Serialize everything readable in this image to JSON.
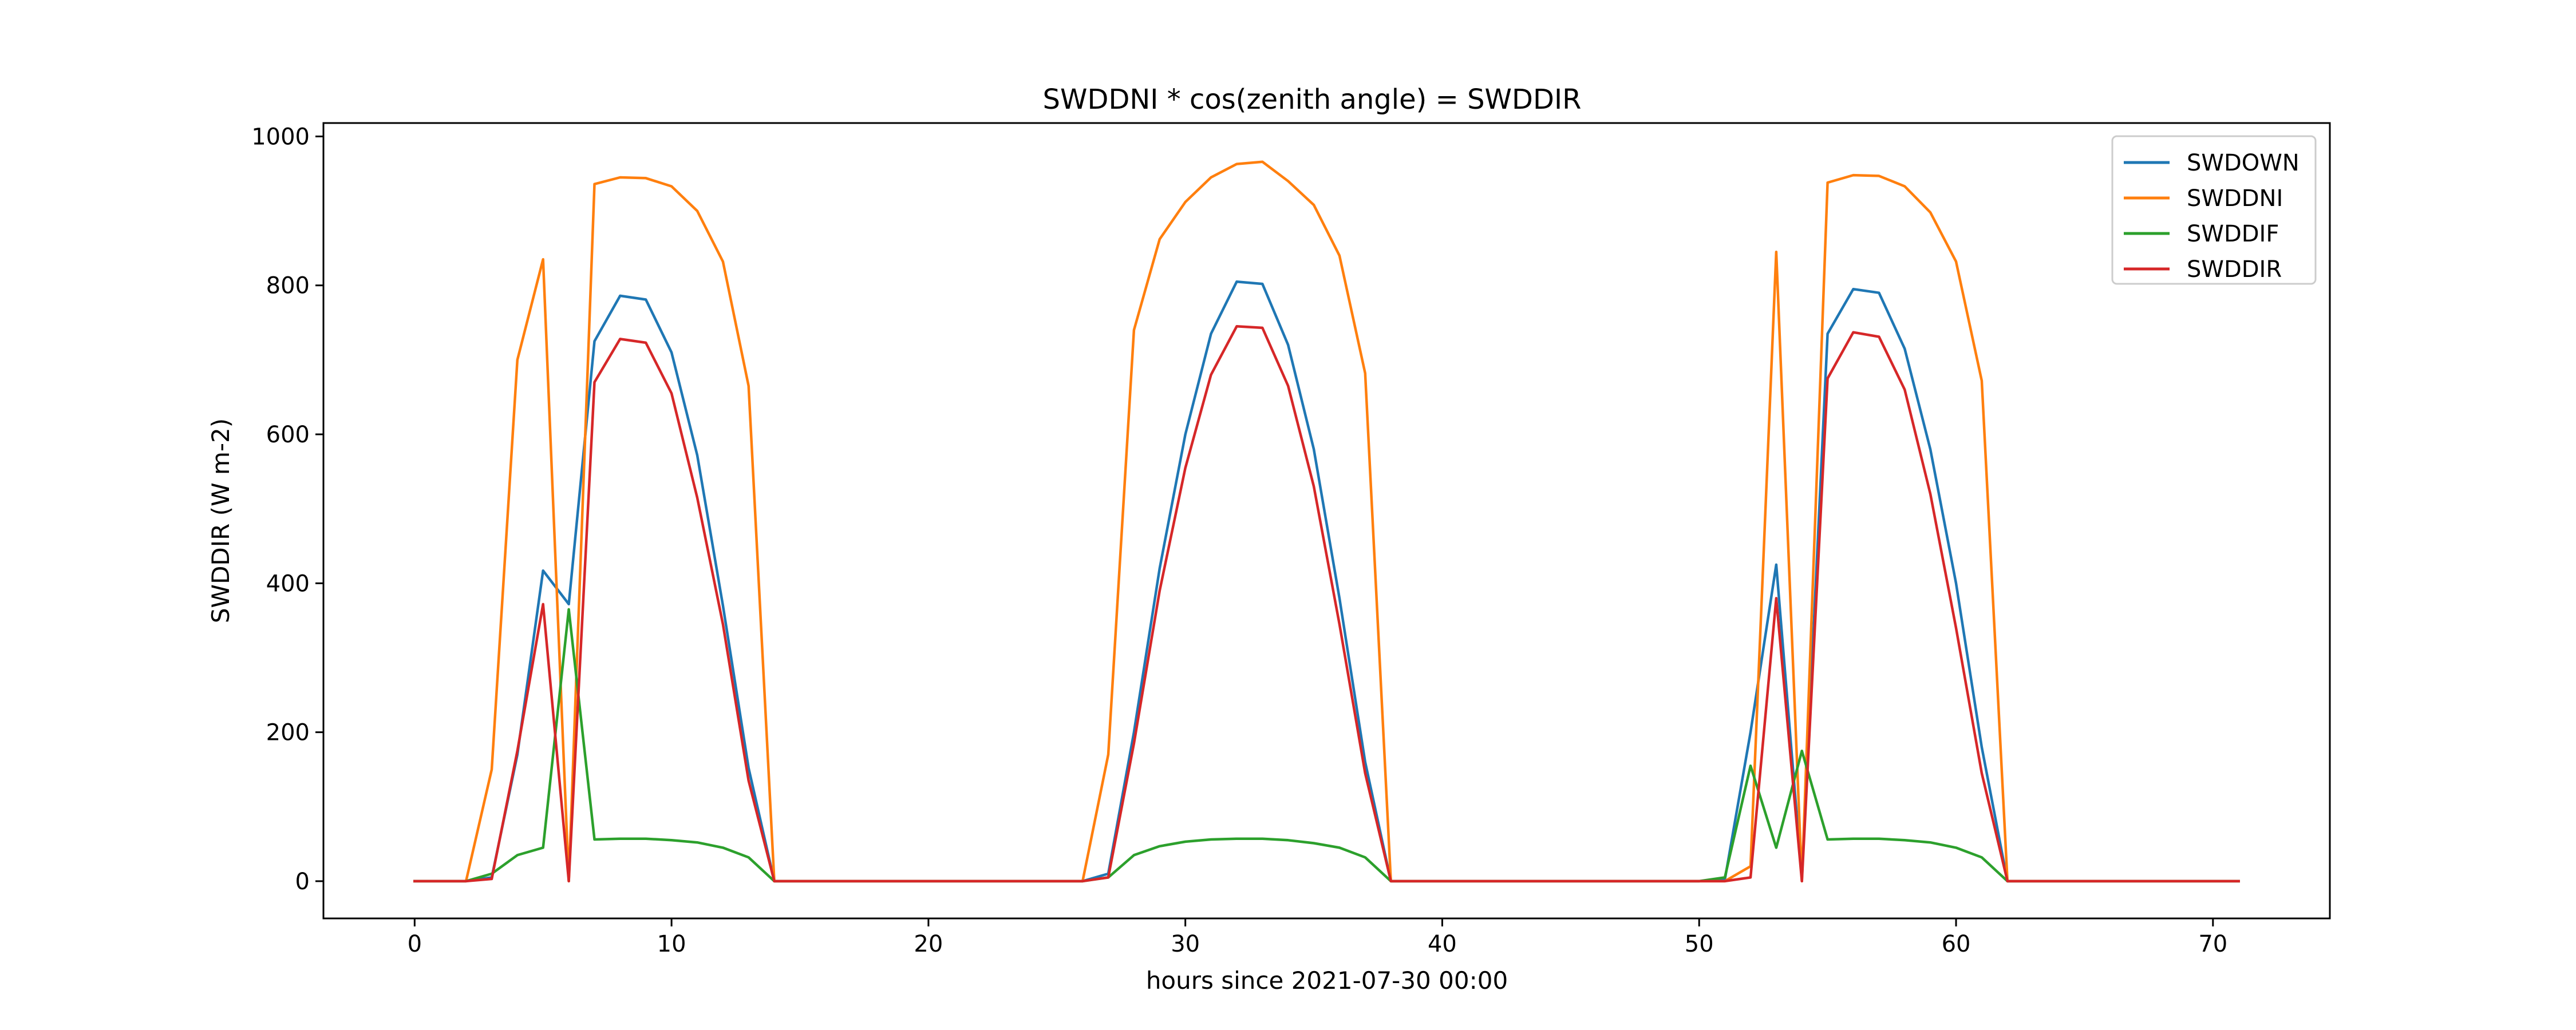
{
  "chart_data": {
    "type": "line",
    "title": "SWDDNI * cos(zenith angle) = SWDDIR",
    "xlabel": "hours since 2021-07-30 00:00",
    "ylabel": "SWDDIR (W m-2)",
    "xlim": [
      -3.55,
      74.55
    ],
    "ylim": [
      -50,
      1018
    ],
    "xticks": [
      0,
      10,
      20,
      30,
      40,
      50,
      60,
      70
    ],
    "yticks": [
      0,
      200,
      400,
      600,
      800,
      1000
    ],
    "grid": false,
    "legend_position": "top-right",
    "x": [
      0,
      1,
      2,
      3,
      4,
      5,
      6,
      7,
      8,
      9,
      10,
      11,
      12,
      13,
      14,
      15,
      16,
      17,
      18,
      19,
      20,
      21,
      22,
      23,
      24,
      25,
      26,
      27,
      28,
      29,
      30,
      31,
      32,
      33,
      34,
      35,
      36,
      37,
      38,
      39,
      40,
      41,
      42,
      43,
      44,
      45,
      46,
      47,
      48,
      49,
      50,
      51,
      52,
      53,
      54,
      55,
      56,
      57,
      58,
      59,
      60,
      61,
      62,
      63,
      64,
      65,
      66,
      67,
      68,
      69,
      70,
      71
    ],
    "series": [
      {
        "name": "SWDOWN",
        "color": "#1f77b4",
        "values": [
          0,
          0,
          0,
          5,
          170,
          417,
          372,
          725,
          786,
          781,
          710,
          572,
          370,
          152,
          0,
          0,
          0,
          0,
          0,
          0,
          0,
          0,
          0,
          0,
          0,
          0,
          0,
          10,
          200,
          420,
          600,
          735,
          805,
          802,
          720,
          580,
          380,
          160,
          0,
          0,
          0,
          0,
          0,
          0,
          0,
          0,
          0,
          0,
          0,
          0,
          0,
          2,
          200,
          425,
          5,
          735,
          795,
          790,
          715,
          580,
          400,
          180,
          0,
          0,
          0,
          0,
          0,
          0,
          0,
          0,
          0,
          0
        ]
      },
      {
        "name": "SWDDNI",
        "color": "#ff7f0e",
        "values": [
          0,
          0,
          0,
          150,
          700,
          835,
          0,
          936,
          945,
          944,
          933,
          900,
          832,
          665,
          0,
          0,
          0,
          0,
          0,
          0,
          0,
          0,
          0,
          0,
          0,
          0,
          0,
          170,
          740,
          862,
          912,
          945,
          963,
          966,
          940,
          908,
          840,
          682,
          0,
          0,
          0,
          0,
          0,
          0,
          0,
          0,
          0,
          0,
          0,
          0,
          0,
          0,
          20,
          845,
          0,
          938,
          948,
          947,
          933,
          898,
          832,
          672,
          0,
          0,
          0,
          0,
          0,
          0,
          0,
          0,
          0,
          0
        ]
      },
      {
        "name": "SWDDIF",
        "color": "#2ca02c",
        "values": [
          0,
          0,
          0,
          10,
          35,
          45,
          365,
          56,
          57,
          57,
          55,
          52,
          45,
          32,
          0,
          0,
          0,
          0,
          0,
          0,
          0,
          0,
          0,
          0,
          0,
          0,
          0,
          5,
          35,
          47,
          53,
          56,
          57,
          57,
          55,
          51,
          45,
          32,
          0,
          0,
          0,
          0,
          0,
          0,
          0,
          0,
          0,
          0,
          0,
          0,
          0,
          5,
          155,
          45,
          175,
          56,
          57,
          57,
          55,
          52,
          45,
          32,
          0,
          0,
          0,
          0,
          0,
          0,
          0,
          0,
          0,
          0
        ]
      },
      {
        "name": "SWDDIR",
        "color": "#d62728",
        "values": [
          0,
          0,
          0,
          3,
          175,
          372,
          0,
          670,
          728,
          723,
          655,
          515,
          345,
          135,
          0,
          0,
          0,
          0,
          0,
          0,
          0,
          0,
          0,
          0,
          0,
          0,
          0,
          5,
          185,
          390,
          555,
          680,
          745,
          743,
          665,
          530,
          345,
          145,
          0,
          0,
          0,
          0,
          0,
          0,
          0,
          0,
          0,
          0,
          0,
          0,
          0,
          0,
          5,
          380,
          0,
          675,
          737,
          731,
          660,
          520,
          340,
          145,
          0,
          0,
          0,
          0,
          0,
          0,
          0,
          0,
          0,
          0
        ]
      }
    ]
  }
}
